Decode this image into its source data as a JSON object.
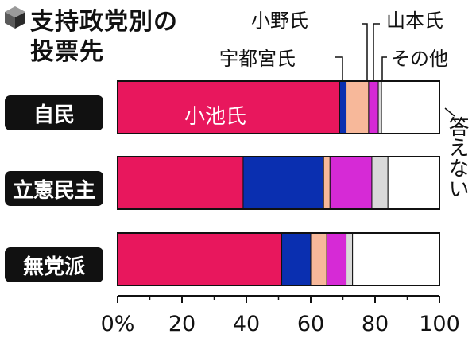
{
  "chart_data": {
    "type": "bar",
    "orientation": "horizontal",
    "stacked": true,
    "title": "支持政党別の投票先",
    "title_lines": [
      "支持政党別の",
      "投票先"
    ],
    "categories": [
      "自民",
      "立憲民主",
      "無党派"
    ],
    "series": [
      {
        "name": "小池氏",
        "color": "#e8175d",
        "values": [
          69,
          39,
          51
        ]
      },
      {
        "name": "宇都宮氏",
        "color": "#0a2fb0",
        "values": [
          2,
          25,
          9
        ]
      },
      {
        "name": "小野氏",
        "color": "#f7b89a",
        "values": [
          7,
          2,
          5
        ]
      },
      {
        "name": "山本氏",
        "color": "#d62ad6",
        "values": [
          3,
          13,
          6
        ]
      },
      {
        "name": "その他",
        "color": "#d9d9d9",
        "values": [
          1,
          5,
          2
        ]
      },
      {
        "name": "答えない",
        "color": "#ffffff",
        "values": [
          18,
          16,
          27
        ]
      }
    ],
    "inbar_label": "小池氏",
    "xlim": [
      0,
      100
    ],
    "xticks": [
      0,
      20,
      40,
      60,
      80,
      100
    ],
    "xtick_labels": [
      "0%",
      "20",
      "40",
      "60",
      "80",
      "100"
    ],
    "grid": false
  }
}
